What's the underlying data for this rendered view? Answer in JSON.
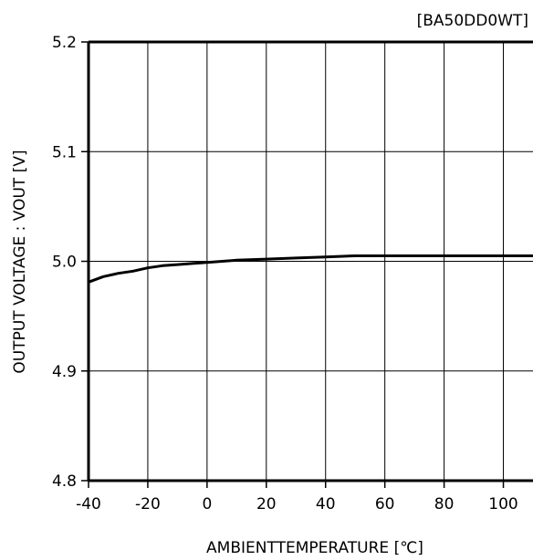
{
  "chart_data": {
    "type": "line",
    "title": "",
    "tag": "[BA50DD0WT]",
    "xlabel": "AMBIENTTEMPERATURE [℃]",
    "ylabel": "OUTPUT VOLTAGE : VOUT [V]",
    "xlim": [
      -40,
      110
    ],
    "ylim": [
      4.8,
      5.2
    ],
    "x_ticks": [
      -40,
      -20,
      0,
      20,
      40,
      60,
      80,
      100
    ],
    "x_tick_labels": [
      "-40",
      "-20",
      "0",
      "20",
      "40",
      "60",
      "80",
      "100"
    ],
    "y_ticks": [
      4.8,
      4.9,
      5.0,
      5.1,
      5.2
    ],
    "y_tick_labels": [
      "4.8",
      "4.9",
      "5.0",
      "5.1",
      "5.2"
    ],
    "grid": true,
    "series": [
      {
        "x": [
          -40,
          -35,
          -30,
          -25,
          -20,
          -15,
          -10,
          -5,
          0,
          10,
          20,
          30,
          40,
          50,
          60,
          70,
          80,
          90,
          100,
          110
        ],
        "y": [
          4.981,
          4.986,
          4.989,
          4.991,
          4.994,
          4.996,
          4.997,
          4.998,
          4.999,
          5.001,
          5.002,
          5.003,
          5.004,
          5.005,
          5.005,
          5.005,
          5.005,
          5.005,
          5.005,
          5.005
        ]
      }
    ]
  }
}
